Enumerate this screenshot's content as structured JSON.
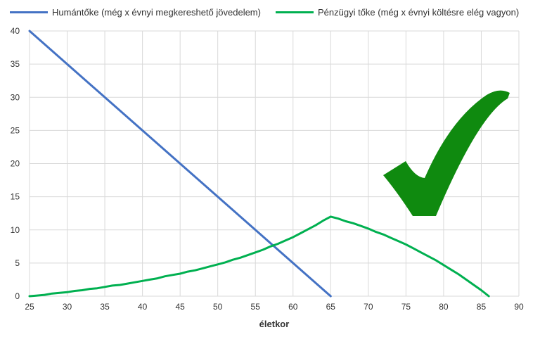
{
  "chart_data": {
    "type": "line",
    "title": "",
    "xlabel": "életkor",
    "ylabel": "",
    "xlim": [
      25,
      90
    ],
    "ylim": [
      0,
      40
    ],
    "x_ticks": [
      25,
      30,
      35,
      40,
      45,
      50,
      55,
      60,
      65,
      70,
      75,
      80,
      85,
      90
    ],
    "y_ticks": [
      0,
      5,
      10,
      15,
      20,
      25,
      30,
      35,
      40
    ],
    "grid": true,
    "legend_position": "top",
    "series": [
      {
        "name": "Humántőke (még x évnyi megkereshető jövedelem)",
        "color": "#4472c4",
        "x": [
          25,
          65
        ],
        "y": [
          40,
          0
        ]
      },
      {
        "name": "Pénzügyi tőke (még x évnyi költésre elég vagyon)",
        "color": "#00b050",
        "x": [
          25,
          26,
          27,
          28,
          29,
          30,
          31,
          32,
          33,
          34,
          35,
          36,
          37,
          38,
          39,
          40,
          41,
          42,
          43,
          44,
          45,
          46,
          47,
          48,
          49,
          50,
          51,
          52,
          53,
          54,
          55,
          56,
          57,
          58,
          59,
          60,
          61,
          62,
          63,
          64,
          65,
          66,
          67,
          68,
          69,
          70,
          71,
          72,
          73,
          74,
          75,
          76,
          77,
          78,
          79,
          80,
          81,
          82,
          83,
          84,
          85,
          86
        ],
        "y": [
          0,
          0.1,
          0.2,
          0.4,
          0.5,
          0.6,
          0.8,
          0.9,
          1.1,
          1.2,
          1.4,
          1.6,
          1.7,
          1.9,
          2.1,
          2.3,
          2.5,
          2.7,
          3.0,
          3.2,
          3.4,
          3.7,
          3.9,
          4.2,
          4.5,
          4.8,
          5.1,
          5.5,
          5.8,
          6.2,
          6.6,
          7.0,
          7.5,
          7.9,
          8.4,
          8.9,
          9.5,
          10.1,
          10.7,
          11.4,
          12.0,
          11.7,
          11.3,
          11.0,
          10.6,
          10.2,
          9.7,
          9.3,
          8.8,
          8.3,
          7.8,
          7.2,
          6.6,
          6.0,
          5.4,
          4.7,
          4.0,
          3.3,
          2.5,
          1.7,
          0.9,
          0
        ]
      }
    ],
    "annotation_icon": "green-checkmark-icon"
  }
}
